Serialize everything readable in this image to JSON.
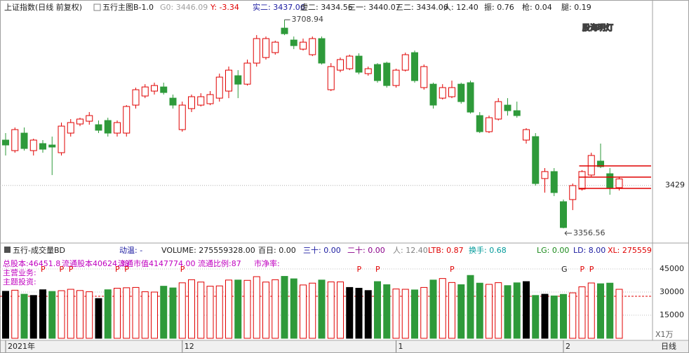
{
  "chart_data": [
    {
      "type": "candlestick",
      "title": "上证指数(日线 前复权)",
      "indicator": "五行主图B-1.0",
      "header": [
        {
          "text": "G0: 3446.09",
          "color": "#a0a0a0"
        },
        {
          "text": "Y: -3.34",
          "color": "#e00000"
        },
        {
          "text": "实二: 3437.06",
          "color": "#1a1aa0"
        },
        {
          "text": "虚二: 3434.56",
          "color": "#202020"
        },
        {
          "text": "三一: 3440.07",
          "color": "#202020"
        },
        {
          "text": "三二: 3434.06",
          "color": "#202020"
        },
        {
          "text": "人: 12.40",
          "color": "#202020"
        },
        {
          "text": "振: 0.76",
          "color": "#202020"
        },
        {
          "text": "枪: 0.04",
          "color": "#202020"
        },
        {
          "text": "腿: 0.19",
          "color": "#202020"
        }
      ],
      "watermark": "股海明灯",
      "categories": [
        "2021年",
        null,
        null,
        null,
        null,
        null,
        null,
        null,
        null,
        null,
        null,
        null,
        null,
        null,
        null,
        null,
        null,
        null,
        null,
        "12",
        null,
        null,
        null,
        null,
        null,
        null,
        null,
        null,
        null,
        null,
        null,
        null,
        null,
        null,
        null,
        null,
        null,
        null,
        null,
        null,
        null,
        null,
        "1",
        null,
        null,
        null,
        null,
        null,
        null,
        null,
        null,
        null,
        null,
        null,
        null,
        null,
        null,
        null,
        null,
        null,
        "2",
        null,
        null,
        null,
        null,
        null,
        null
      ],
      "open": [
        3505.6,
        3487.8,
        3517.4,
        3487.8,
        3499.7,
        3497.3,
        3484.3,
        3517.4,
        3532.8,
        3537.5,
        3531.6,
        3538.7,
        3517.4,
        3517.4,
        3564.7,
        3580.1,
        3588.4,
        3595.4,
        3576.5,
        3523.3,
        3558.8,
        3564.7,
        3567.1,
        3576.5,
        3588.4,
        3614.4,
        3600.1,
        3635.7,
        3645.1,
        3653.4,
        3694.8,
        3674.7,
        3659.3,
        3649.9,
        3677.1,
        3590.7,
        3623.8,
        3626.2,
        3647.5,
        3617.9,
        3633.3,
        3635.7,
        3597.8,
        3623.8,
        3653.4,
        3594.3,
        3600.1,
        3576.5,
        3578.9,
        3600.1,
        3602.6,
        3547.0,
        3519.8,
        3541.1,
        3564.7,
        3555.3,
        3505.6,
        3511.5,
        3440.6,
        3452.4,
        3401.5,
        3405.1,
        3422.8,
        3446.5,
        3470.1,
        3448.8,
        3425.2
      ],
      "high": [
        3517.4,
        3526.9,
        3526.9,
        3508.0,
        3505.6,
        3511.5,
        3535.2,
        3541.1,
        3543.4,
        3552.9,
        3538.7,
        3543.4,
        3538.7,
        3564.7,
        3594.2,
        3600.1,
        3602.6,
        3602.6,
        3582.5,
        3570.6,
        3582.5,
        3584.8,
        3588.4,
        3617.9,
        3629.8,
        3623.8,
        3641.6,
        3683.0,
        3680.6,
        3673.5,
        3708.94,
        3680.6,
        3677.1,
        3680.6,
        3680.6,
        3635.7,
        3645.1,
        3649.9,
        3652.2,
        3629.8,
        3635.7,
        3638.0,
        3626.2,
        3653.4,
        3657.0,
        3633.3,
        3602.6,
        3600.1,
        3606.1,
        3602.6,
        3606.1,
        3552.9,
        3547.0,
        3576.5,
        3576.5,
        3570.6,
        3525.7,
        3517.4,
        3458.3,
        3458.3,
        3405.1,
        3432.2,
        3454.8,
        3484.3,
        3499.7,
        3458.3,
        3444.1
      ],
      "low": [
        3479.6,
        3484.3,
        3487.8,
        3479.6,
        3484.3,
        3446.5,
        3479.6,
        3511.5,
        3529.2,
        3531.6,
        3517.4,
        3511.5,
        3511.5,
        3511.5,
        3558.8,
        3576.5,
        3582.5,
        3582.5,
        3558.8,
        3519.8,
        3552.9,
        3562.4,
        3564.7,
        3570.6,
        3576.5,
        3576.5,
        3597.8,
        3629.8,
        3641.6,
        3649.9,
        3683.0,
        3659.3,
        3657.0,
        3647.5,
        3633.3,
        3588.4,
        3620.3,
        3623.8,
        3616.7,
        3614.4,
        3602.6,
        3594.2,
        3594.2,
        3621.5,
        3602.6,
        3590.7,
        3558.8,
        3574.2,
        3576.5,
        3567.1,
        3550.5,
        3517.4,
        3517.4,
        3538.7,
        3547.0,
        3543.4,
        3499.7,
        3428.7,
        3416.9,
        3411.0,
        3356.56,
        3387.3,
        3420.4,
        3444.1,
        3458.3,
        3413.3,
        3420.4
      ],
      "close": [
        3497.3,
        3523.3,
        3491.4,
        3505.6,
        3490.2,
        3493.8,
        3529.2,
        3535.2,
        3541.1,
        3547.0,
        3522.2,
        3517.4,
        3535.2,
        3562.4,
        3590.7,
        3595.4,
        3597.8,
        3586.0,
        3564.7,
        3564.7,
        3578.9,
        3578.9,
        3582.5,
        3612.0,
        3623.8,
        3600.1,
        3635.7,
        3677.1,
        3677.1,
        3671.1,
        3685.3,
        3665.2,
        3671.1,
        3677.1,
        3635.7,
        3629.8,
        3641.6,
        3647.5,
        3620.3,
        3626.2,
        3606.1,
        3597.8,
        3623.8,
        3649.9,
        3606.1,
        3629.8,
        3564.7,
        3594.3,
        3594.3,
        3570.6,
        3552.9,
        3519.8,
        3543.4,
        3570.6,
        3555.3,
        3547.0,
        3523.3,
        3432.2,
        3452.4,
        3416.9,
        3357.8,
        3428.7,
        3452.4,
        3479.6,
        3460.7,
        3425.2,
        3440.0
      ],
      "colors": {
        "up": "#e00000",
        "down": "#2e9a3a",
        "flat": "#000000"
      },
      "high_label": 3708.94,
      "low_label": 3356.56,
      "levels": [
        3462,
        3443,
        3424
      ],
      "level_color": "#e00000",
      "ylim": [
        3334,
        3721
      ],
      "yticks": [
        3429
      ]
    },
    {
      "type": "bar",
      "title": "五行-成交量BD",
      "header": [
        {
          "text": "动温: -",
          "color": "#1a1aa0"
        },
        {
          "text": "VOLUME: 275559328.00",
          "color": "#202020"
        },
        {
          "text": "百日: 0.00",
          "color": "#202020"
        },
        {
          "text": "三十: 0.00",
          "color": "#1a1aa0"
        },
        {
          "text": "二十: 0.00",
          "color": "#8a008a"
        },
        {
          "text": "人: 12.40",
          "color": "#808080"
        },
        {
          "text": "LTB: 0.87",
          "color": "#e00000"
        },
        {
          "text": "换手: 0.68",
          "color": "#009a9a"
        },
        {
          "text": "LG: 0.00",
          "color": "#1a8a1a"
        },
        {
          "text": "LD: 8.00",
          "color": "#1a1aa0"
        },
        {
          "text": "XL: 275559",
          "color": "#e00000"
        }
      ],
      "info": [
        "总股本:46451.8",
        "流通股本40624.38",
        "流通市值4147774.00",
        "流通比例:87",
        "市净率:",
        "主营业务:",
        "主题投资:"
      ],
      "info_color": "#c000c0",
      "signals": [
        {
          "bar": 4,
          "label": "P"
        },
        {
          "bar": 6,
          "label": "P"
        },
        {
          "bar": 7,
          "label": "P"
        },
        {
          "bar": 12,
          "label": "P"
        },
        {
          "bar": 13,
          "label": "P"
        },
        {
          "bar": 19,
          "label": "P"
        },
        {
          "bar": 38,
          "label": "P"
        },
        {
          "bar": 40,
          "label": "P"
        },
        {
          "bar": 48,
          "label": "P"
        },
        {
          "bar": 60,
          "label": "G"
        },
        {
          "bar": 62,
          "label": "P"
        },
        {
          "bar": 63,
          "label": "P"
        }
      ],
      "values": [
        30500,
        31200,
        28600,
        27800,
        31500,
        30400,
        30900,
        31800,
        31000,
        30200,
        25800,
        31500,
        32500,
        32800,
        33000,
        30200,
        30000,
        33800,
        32700,
        36000,
        38000,
        36500,
        33800,
        34000,
        37800,
        37800,
        37600,
        40000,
        36500,
        38000,
        40200,
        38600,
        34600,
        35800,
        37800,
        36600,
        36600,
        33000,
        32500,
        31000,
        36800,
        34800,
        32000,
        31800,
        31400,
        33000,
        37800,
        38800,
        36200,
        34800,
        40800,
        35800,
        35000,
        36100,
        34200,
        36000,
        36800,
        27800,
        28600,
        27500,
        28500,
        29500,
        33400,
        35900,
        35400,
        35800,
        31800
      ],
      "kinds": [
        "flat",
        "up",
        "down",
        "flat",
        "flat",
        "down",
        "up",
        "up",
        "up",
        "up",
        "flat",
        "down",
        "up",
        "up",
        "up",
        "up",
        "up",
        "down",
        "down",
        "up",
        "up",
        "up",
        "up",
        "up",
        "up",
        "down",
        "up",
        "up",
        "up",
        "up",
        "down",
        "down",
        "up",
        "up",
        "down",
        "up",
        "up",
        "flat",
        "flat",
        "flat",
        "down",
        "down",
        "up",
        "up",
        "down",
        "up",
        "down",
        "up",
        "up",
        "down",
        "down",
        "down",
        "up",
        "up",
        "down",
        "down",
        "flat",
        "down",
        "flat",
        "down",
        "down",
        "up",
        "up",
        "up",
        "down",
        "down",
        "up"
      ],
      "reference": 27300,
      "unit": "X1万",
      "ylim": [
        0,
        52000
      ],
      "yticks": [
        15000,
        30000,
        45000
      ]
    },
    {
      "period": "日线"
    }
  ]
}
